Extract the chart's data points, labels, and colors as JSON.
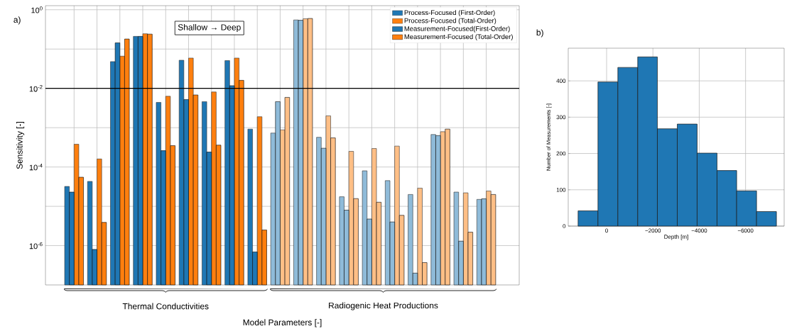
{
  "chart_data": [
    {
      "type": "bar",
      "xlabel": "Model Parameters [-]",
      "ylabel": "Sensitivity [-]",
      "annotations": [
        "a)",
        "Shallow → Deep",
        "Thermal Conductivities",
        "Radiogenic Heat Productions"
      ],
      "categories": [
        null,
        null,
        null,
        null,
        null,
        null,
        null,
        null,
        null,
        null,
        null,
        null,
        null,
        null,
        null,
        null,
        null,
        null,
        null
      ],
      "series": [
        {
          "name": "Process-Focused (First-Order)",
          "colors": [
            "#1f77b4",
            "#1f77b4",
            "#1f77b4",
            "#1f77b4",
            "#1f77b4",
            "#1f77b4",
            "#1f77b4",
            "#1f77b4",
            "#1f77b4",
            "#8fbbd9",
            "#8fbbd9",
            "#8fbbd9",
            "#8fbbd9",
            "#8fbbd9",
            "#8fbbd9",
            "#8fbbd9",
            "#8fbbd9",
            "#8fbbd9",
            "#8fbbd9"
          ],
          "values": [
            3.2e-05,
            4.3e-05,
            0.048,
            0.21,
            0.0044,
            0.052,
            0.0046,
            0.051,
            0.00092,
            0.00073,
            0.55,
            0.00057,
            1.75e-05,
            8e-05,
            4.5e-05,
            2e-05,
            0.00067,
            2.3e-05,
            1.5e-05
          ]
        },
        {
          "name": "Process-Focused (Total-Order)",
          "colors": [
            "#ff7f0e",
            "#ff7f0e",
            "#ff7f0e",
            "#ff7f0e",
            "#ff7f0e",
            "#ff7f0e",
            "#ff7f0e",
            "#ff7f0e",
            "#ff7f0e",
            "#ffbf86",
            "#ffbf86",
            "#ffbf86",
            "#ffbf86",
            "#ffbf86",
            "#ffbf86",
            "#ffbf86",
            "#ffbf86",
            "#ffbf86",
            "#ffbf86"
          ],
          "values": [
            0.00038,
            0.00016,
            0.066,
            0.245,
            0.0063,
            0.059,
            0.0081,
            0.059,
            0.0019,
            0.00088,
            0.59,
            0.002,
            0.00025,
            0.000295,
            0.00034,
            2.9e-05,
            0.00079,
            2.2e-05,
            2.45e-05
          ]
        },
        {
          "name": "Measurement-Focused(First-Order)",
          "colors": [
            "#1f77b4",
            "#1f77b4",
            "#1f77b4",
            "#1f77b4",
            "#1f77b4",
            "#1f77b4",
            "#1f77b4",
            "#1f77b4",
            "#1f77b4",
            "#8fbbd9",
            "#8fbbd9",
            "#8fbbd9",
            "#8fbbd9",
            "#8fbbd9",
            "#8fbbd9",
            "#8fbbd9",
            "#8fbbd9",
            "#8fbbd9",
            "#8fbbd9"
          ],
          "values": [
            2.3e-05,
            8e-07,
            0.144,
            0.21,
            0.00026,
            0.0052,
            0.00024,
            0.0117,
            6.9e-07,
            0.0046,
            0.54,
            0.0003,
            8e-06,
            4.75e-06,
            4e-06,
            2e-07,
            0.00063,
            1.3e-06,
            1.55e-05
          ]
        },
        {
          "name": "Measurement-Focused (Total-Order)",
          "colors": [
            "#ff7f0e",
            "#ff7f0e",
            "#ff7f0e",
            "#ff7f0e",
            "#ff7f0e",
            "#ff7f0e",
            "#ff7f0e",
            "#ff7f0e",
            "#ff7f0e",
            "#ffbf86",
            "#ffbf86",
            "#ffbf86",
            "#ffbf86",
            "#ffbf86",
            "#ffbf86",
            "#ffbf86",
            "#ffbf86",
            "#ffbf86",
            "#ffbf86"
          ],
          "values": [
            5.5e-05,
            3.9e-06,
            0.18,
            0.24,
            0.00035,
            0.0068,
            0.00036,
            0.016,
            2.5e-06,
            0.0059,
            0.6,
            0.00055,
            1.57e-05,
            1.27e-05,
            5.9e-06,
            3.7e-07,
            0.00092,
            2.2e-06,
            2e-05
          ]
        }
      ],
      "log": "y",
      "ylim": [
        1e-07,
        1.27
      ],
      "yticks": [
        {
          "value": 1,
          "label": "10$^{0}$"
        },
        {
          "value": 0.1,
          "label": null
        },
        {
          "value": 0.01,
          "label": "10$^{-2}$"
        },
        {
          "value": 0.001,
          "label": null
        },
        {
          "value": 0.0001,
          "label": "10$^{-4}$"
        },
        {
          "value": 1e-05,
          "label": null
        },
        {
          "value": 1e-06,
          "label": "10$^{-6}$"
        }
      ],
      "ref_lines": [
        {
          "axis": "y",
          "value": 0.01,
          "color": "#000000"
        }
      ],
      "grid": true,
      "legend": "top right"
    },
    {
      "type": "histogram",
      "xlabel": "Depth [m]",
      "ylabel": "Number of Measurements [-]",
      "annotations": [
        "b)"
      ],
      "bins": [
        1232,
        374,
        -485,
        -1343,
        -2192,
        -3051,
        -3909,
        -4768,
        -5616,
        -6475,
        -7333
      ],
      "values": [
        42,
        397,
        437,
        466,
        268,
        281,
        201,
        153,
        97,
        40
      ],
      "color": "#1f77b4",
      "xlim": [
        1657,
        -7667
      ],
      "xticks": [
        0,
        {
          "value": -2000,
          "label": "−2000"
        },
        {
          "value": -4000,
          "label": "−4000"
        },
        {
          "value": -6000,
          "label": "−6000"
        }
      ],
      "ylim": [
        0,
        490
      ],
      "yticks": [
        0,
        100,
        200,
        300,
        400
      ],
      "grid": true
    }
  ]
}
